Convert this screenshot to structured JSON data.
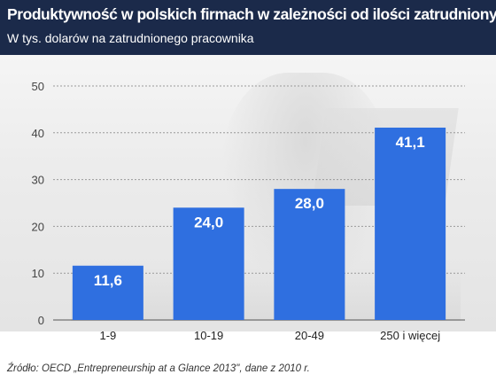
{
  "header": {
    "title": "Produktywność w polskich firmach w zależności od ilości zatrudnionych",
    "subtitle": "W tys. dolarów na zatrudnionego pracownika"
  },
  "footer": {
    "source": "Źródło: OECD „Entrepreneurship at a Glance 2013\", dane z 2010 r."
  },
  "colors": {
    "bar": "#2f6fe0",
    "header_bg": "#1b2a4a"
  },
  "chart_data": {
    "type": "bar",
    "categories": [
      "1-9",
      "10-19",
      "20-49",
      "250 i więcej"
    ],
    "values": [
      11.6,
      24.0,
      28.0,
      41.1
    ],
    "value_labels": [
      "11,6",
      "24,0",
      "28,0",
      "41,1"
    ],
    "yticks": [
      "0",
      "10",
      "20",
      "30",
      "40",
      "50"
    ],
    "ylim": [
      0,
      50
    ],
    "grid": true,
    "legend": "none"
  }
}
